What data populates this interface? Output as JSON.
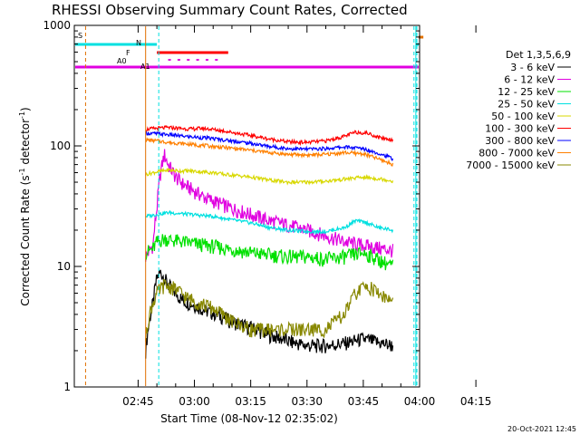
{
  "chart_data": {
    "type": "line",
    "title": "RHESSI Observing Summary Count Rates, Corrected",
    "xlabel": "Start Time (08-Nov-12 02:35:02)",
    "ylabel": "Corrected Count Rate (s⁻¹ detector⁻¹)",
    "ylabel_main": "Corrected Count Rate (s",
    "ylabel_sup1": "-1",
    "ylabel_mid": " detector",
    "ylabel_sup2": "-1",
    "ylabel_end": ")",
    "footer_date": "20-Oct-2021 12:45",
    "y_scale": "log",
    "ylim": [
      1,
      1000
    ],
    "xlim_minutes": [
      -7,
      85
    ],
    "x_ticks": [
      {
        "m": 10,
        "label": "02:45"
      },
      {
        "m": 25,
        "label": "03:00"
      },
      {
        "m": 40,
        "label": "03:15"
      },
      {
        "m": 55,
        "label": "03:30"
      },
      {
        "m": 70,
        "label": "03:45"
      },
      {
        "m": 85,
        "label": "04:00"
      },
      {
        "m": 100,
        "label": "04:15"
      }
    ],
    "y_ticks": [
      {
        "v": 1,
        "label": "1"
      },
      {
        "v": 10,
        "label": "10"
      },
      {
        "v": 100,
        "label": "100"
      },
      {
        "v": 1000,
        "label": "1000"
      }
    ],
    "legend_title": "Det 1,3,5,6,9",
    "legend_position": "right",
    "flags": [
      {
        "label": "S",
        "color": "#e07000"
      },
      {
        "label": "N",
        "color": "#00e0e0"
      },
      {
        "label": "F",
        "color": "#000000"
      },
      {
        "label": "A0",
        "color": "#e000e0"
      },
      {
        "label": "A1",
        "color": "#e000e0"
      }
    ],
    "series": [
      {
        "name": "3 - 6 keV",
        "color": "#000000",
        "x": [
          12,
          14,
          15,
          16,
          18,
          20,
          22,
          25,
          28,
          31,
          34,
          37,
          40,
          45,
          50,
          55,
          60,
          65,
          70,
          75,
          78
        ],
        "y": [
          2,
          5,
          8,
          9,
          7,
          6,
          5.2,
          4.8,
          4.3,
          4.0,
          3.6,
          3.3,
          3.1,
          2.7,
          2.4,
          2.2,
          2.2,
          2.3,
          2.5,
          2.3,
          2.2
        ]
      },
      {
        "name": "6 - 12 keV",
        "color": "#e000e0",
        "x": [
          12,
          14,
          15,
          16,
          17,
          18,
          20,
          22,
          25,
          28,
          31,
          34,
          37,
          40,
          45,
          50,
          55,
          60,
          65,
          70,
          75,
          78
        ],
        "y": [
          12,
          15,
          30,
          60,
          85,
          70,
          55,
          48,
          42,
          37,
          34,
          31,
          29,
          27,
          24,
          22,
          20,
          18,
          16,
          15,
          14,
          13.5
        ]
      },
      {
        "name": "12 - 25 keV",
        "color": "#00e000",
        "x": [
          12,
          14,
          15,
          17,
          19,
          22,
          25,
          28,
          31,
          34,
          37,
          40,
          45,
          50,
          55,
          60,
          65,
          70,
          75,
          78
        ],
        "y": [
          13,
          14,
          16,
          17,
          16.5,
          16,
          15.5,
          15,
          14.5,
          14,
          13.5,
          13,
          12.5,
          12,
          12,
          11.5,
          12,
          13,
          11,
          10
        ]
      },
      {
        "name": "25 - 50 keV",
        "color": "#00e0e0",
        "x": [
          12,
          15,
          18,
          21,
          24,
          27,
          30,
          33,
          36,
          40,
          45,
          50,
          55,
          60,
          65,
          68,
          71,
          74,
          78
        ],
        "y": [
          26,
          27,
          28,
          27.5,
          27,
          26.5,
          26,
          25,
          24,
          23,
          21,
          20,
          19.5,
          19.5,
          21,
          24,
          23,
          21,
          20
        ]
      },
      {
        "name": "50 - 100 keV",
        "color": "#d8d800",
        "x": [
          12,
          15,
          18,
          21,
          24,
          27,
          30,
          33,
          36,
          40,
          45,
          50,
          55,
          60,
          65,
          70,
          75,
          78
        ],
        "y": [
          58,
          61,
          63,
          62,
          62,
          61,
          60,
          58,
          57,
          55,
          52,
          50,
          50,
          51,
          53,
          55,
          53,
          51
        ]
      },
      {
        "name": "100 - 300 keV",
        "color": "#ff0000",
        "x": [
          12,
          15,
          18,
          21,
          24,
          27,
          30,
          33,
          36,
          40,
          45,
          50,
          55,
          60,
          65,
          68,
          71,
          74,
          78
        ],
        "y": [
          137,
          140,
          142,
          140,
          138,
          140,
          137,
          133,
          128,
          122,
          114,
          108,
          107,
          110,
          120,
          130,
          128,
          118,
          112
        ]
      },
      {
        "name": "300 - 800 keV",
        "color": "#0000ff",
        "x": [
          12,
          15,
          18,
          21,
          24,
          27,
          30,
          33,
          36,
          40,
          45,
          50,
          55,
          60,
          65,
          70,
          75,
          78
        ],
        "y": [
          128,
          126,
          124,
          121,
          119,
          117,
          115,
          112,
          109,
          105,
          99,
          95,
          94,
          95,
          98,
          95,
          85,
          78
        ]
      },
      {
        "name": "800 - 7000 keV",
        "color": "#ff8000",
        "x": [
          12,
          15,
          18,
          21,
          24,
          27,
          30,
          33,
          36,
          40,
          45,
          50,
          55,
          60,
          65,
          70,
          75,
          78
        ],
        "y": [
          112,
          110,
          107,
          105,
          103,
          101,
          99,
          97,
          95,
          92,
          88,
          85,
          84,
          85,
          88,
          86,
          76,
          70
        ]
      },
      {
        "name": "7000 - 15000 keV",
        "color": "#888800",
        "x": [
          12,
          13,
          15,
          17,
          20,
          23,
          26,
          30,
          35,
          40,
          45,
          50,
          55,
          60,
          65,
          68,
          71,
          74,
          78
        ],
        "y": [
          2.5,
          4,
          6,
          7,
          6.5,
          5.5,
          5,
          4.5,
          3.5,
          3,
          3,
          3,
          3,
          3,
          4,
          6,
          7,
          6,
          5
        ]
      }
    ]
  }
}
